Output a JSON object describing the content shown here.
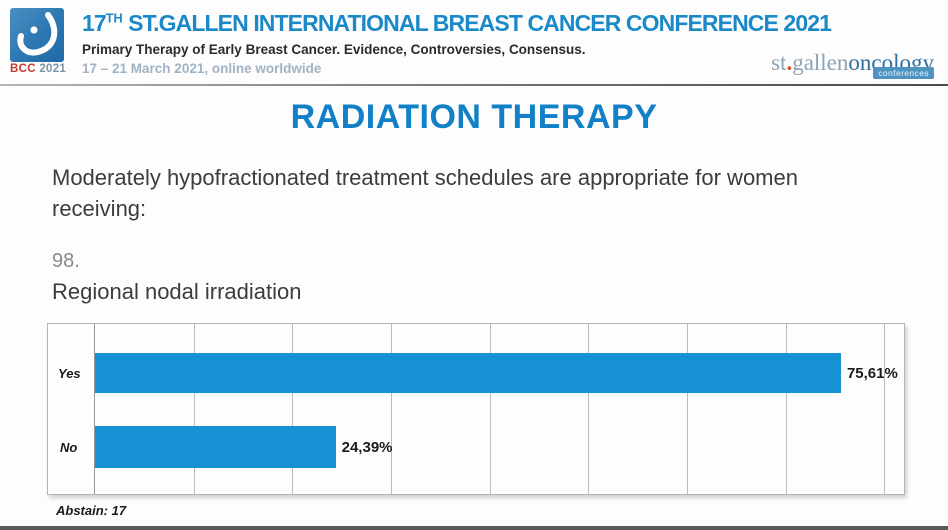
{
  "header": {
    "logo": {
      "acronym": "BCC",
      "year": "2021"
    },
    "title_num": "17",
    "title_sup": "TH",
    "title_rest": " ST.GALLEN INTERNATIONAL BREAST CANCER CONFERENCE 2021",
    "subtitle": "Primary Therapy of Early Breast Cancer. Evidence, Controversies, Consensus.",
    "dates": "17 – 21 March 2021, online worldwide",
    "brand": {
      "st": "st",
      "dot": ".",
      "gallen": "gallen",
      "oncology": "oncology",
      "badge": "conferences"
    }
  },
  "slide": {
    "title": "RADIATION THERAPY",
    "question": "Moderately hypofractionated treatment schedules are appropriate for women receiving:",
    "item_number": "98.",
    "item_text": "Regional nodal irradiation",
    "abstain": "Abstain: 17"
  },
  "chart_data": {
    "type": "bar",
    "orientation": "horizontal",
    "title": "Regional nodal irradiation",
    "categories": [
      "Yes",
      "No"
    ],
    "values": [
      75.61,
      24.39
    ],
    "value_labels": [
      "75,61%",
      "24,39%"
    ],
    "xlim": [
      0,
      82
    ],
    "gridline_step": 10,
    "grid": true,
    "legend": false,
    "bar_color": "#1691d4",
    "abstain_count": 17
  },
  "colors": {
    "accent_blue": "#1b89c8",
    "slide_title_blue": "#1180c6",
    "bar_blue": "#1691d4",
    "logo_red": "#c23a2e",
    "date_gray_blue": "#9fb3c4",
    "brand_gray": "#8ba3b4",
    "brand_oncology": "#2e6f9e",
    "brand_dot_orange": "#d4502a"
  }
}
